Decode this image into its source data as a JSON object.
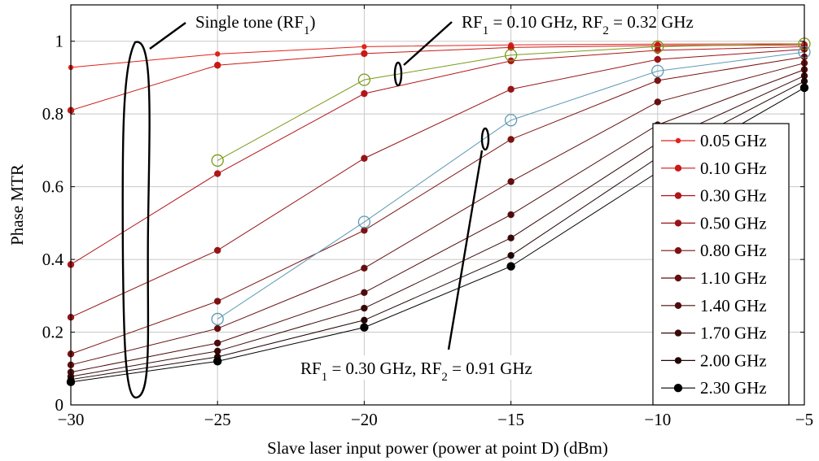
{
  "chart_data": {
    "type": "line",
    "title": "",
    "xlabel": "Slave laser input power (power at point D) (dBm)",
    "ylabel": "Phase MTR",
    "xlim": [
      -30,
      -5
    ],
    "ylim": [
      0,
      1.1
    ],
    "xticks": [
      -30,
      -25,
      -20,
      -15,
      -10,
      -5
    ],
    "xtick_labels": [
      "−30",
      "−25",
      "−20",
      "−15",
      "−10",
      "−5"
    ],
    "yticks": [
      0,
      0.2,
      0.4,
      0.6,
      0.8,
      1
    ],
    "ytick_labels": [
      "0",
      "0.2",
      "0.4",
      "0.6",
      "0.8",
      "1"
    ],
    "grid": true,
    "legend_position": "right",
    "series": [
      {
        "name": "0.05 GHz",
        "color": "#e2231a",
        "marker": "dot-small",
        "x": [
          -30,
          -25,
          -20,
          -15,
          -10,
          -5
        ],
        "y": [
          0.928,
          0.965,
          0.985,
          0.99,
          0.992,
          0.993
        ]
      },
      {
        "name": "0.10 GHz",
        "color": "#c81a16",
        "marker": "dot",
        "x": [
          -30,
          -25,
          -20,
          -15,
          -10,
          -5
        ],
        "y": [
          0.81,
          0.934,
          0.966,
          0.983,
          0.988,
          0.99
        ]
      },
      {
        "name": "0.30 GHz",
        "color": "#b0151a",
        "marker": "dot",
        "x": [
          -30,
          -25,
          -20,
          -15,
          -10,
          -5
        ],
        "y": [
          0.386,
          0.636,
          0.856,
          0.946,
          0.975,
          0.985
        ]
      },
      {
        "name": "0.50 GHz",
        "color": "#961418",
        "marker": "dot",
        "x": [
          -30,
          -25,
          -20,
          -15,
          -10,
          -5
        ],
        "y": [
          0.241,
          0.425,
          0.678,
          0.868,
          0.95,
          0.978
        ]
      },
      {
        "name": "0.80 GHz",
        "color": "#7c1212",
        "marker": "dot",
        "x": [
          -30,
          -25,
          -20,
          -15,
          -10,
          -5
        ],
        "y": [
          0.14,
          0.285,
          0.48,
          0.73,
          0.892,
          0.957
        ]
      },
      {
        "name": "1.10 GHz",
        "color": "#640f0f",
        "marker": "dot",
        "x": [
          -30,
          -25,
          -20,
          -15,
          -10,
          -5
        ],
        "y": [
          0.11,
          0.21,
          0.376,
          0.614,
          0.833,
          0.94
        ]
      },
      {
        "name": "1.40 GHz",
        "color": "#4e0c0c",
        "marker": "dot",
        "x": [
          -30,
          -25,
          -20,
          -15,
          -10,
          -5
        ],
        "y": [
          0.09,
          0.17,
          0.309,
          0.523,
          0.77,
          0.922
        ]
      },
      {
        "name": "1.70 GHz",
        "color": "#380909",
        "marker": "dot",
        "x": [
          -30,
          -25,
          -20,
          -15,
          -10,
          -5
        ],
        "y": [
          0.078,
          0.148,
          0.266,
          0.459,
          0.72,
          0.905
        ]
      },
      {
        "name": "2.00 GHz",
        "color": "#220606",
        "marker": "dot",
        "x": [
          -30,
          -25,
          -20,
          -15,
          -10,
          -5
        ],
        "y": [
          0.07,
          0.132,
          0.233,
          0.411,
          0.68,
          0.89
        ]
      },
      {
        "name": "2.30 GHz",
        "color": "#000000",
        "marker": "dot-large",
        "x": [
          -30,
          -25,
          -20,
          -15,
          -10,
          -5
        ],
        "y": [
          0.063,
          0.12,
          0.213,
          0.381,
          0.64,
          0.872
        ]
      },
      {
        "name": "",
        "color": "#7a9a1a",
        "marker": "circle-open",
        "x": [
          -25,
          -20,
          -15,
          -10,
          -5
        ],
        "y": [
          0.672,
          0.894,
          0.962,
          0.985,
          0.993
        ]
      },
      {
        "name": "",
        "color": "#5b9ab4",
        "marker": "circle-open",
        "x": [
          -25,
          -20,
          -15,
          -10,
          -5
        ],
        "y": [
          0.236,
          0.503,
          0.783,
          0.918,
          0.97
        ]
      }
    ],
    "annotations": [
      {
        "id": "single-tone",
        "label": "Single tone (RF",
        "sub": "1",
        "tail": ")"
      },
      {
        "id": "two-tone-a",
        "label": "RF",
        "sub": "1",
        "mid": " = 0.10 GHz, RF",
        "sub2": "2",
        "tail": " = 0.32 GHz"
      },
      {
        "id": "two-tone-b",
        "label": "RF",
        "sub": "1",
        "mid": " = 0.30 GHz, RF",
        "sub2": "2",
        "tail": " = 0.91 GHz"
      }
    ]
  }
}
